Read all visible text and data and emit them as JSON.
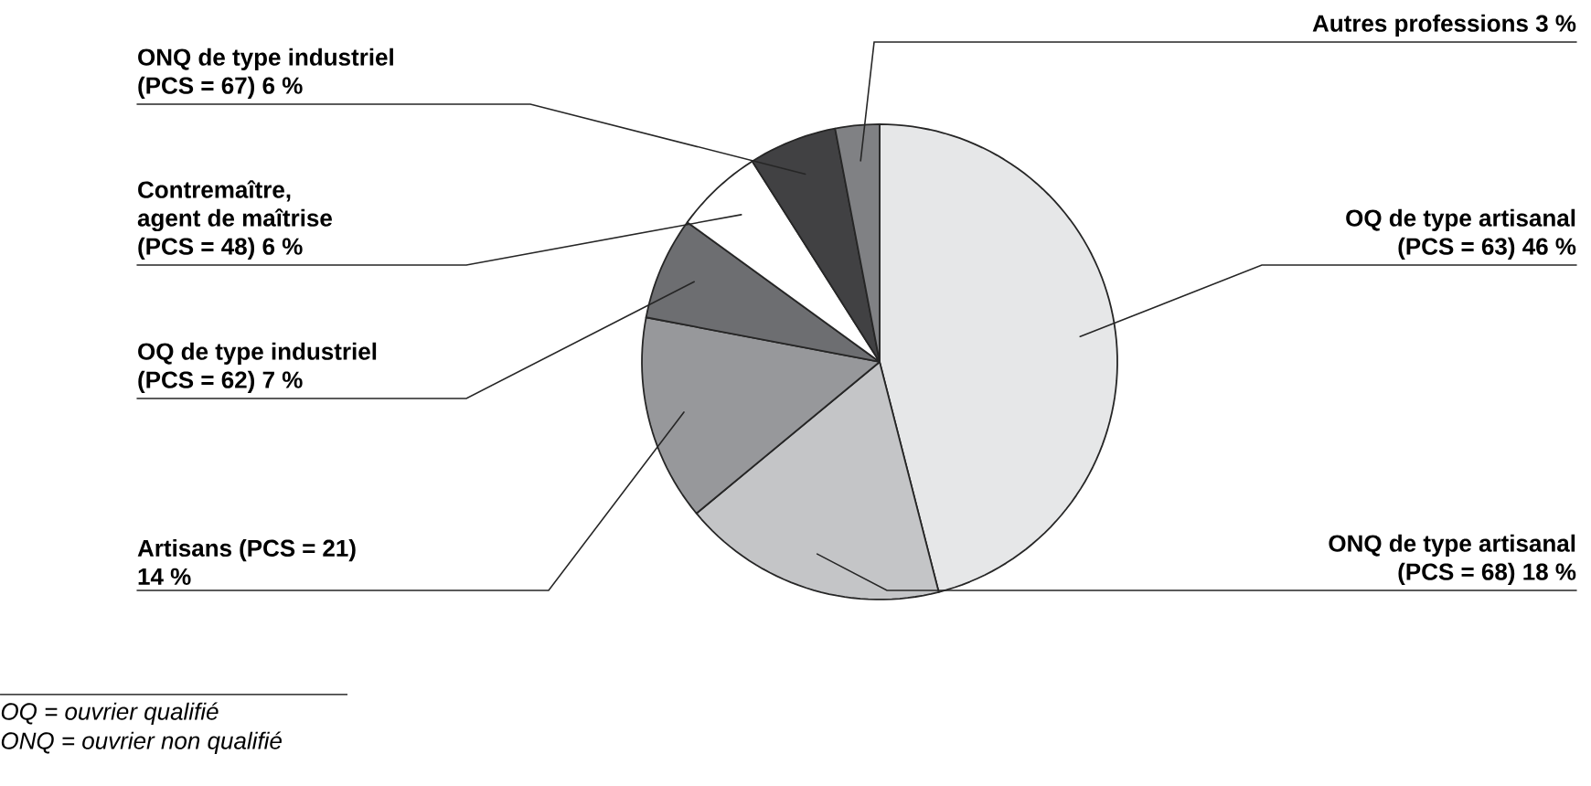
{
  "chart_data": {
    "type": "pie",
    "categories": [
      "OQ de type artisanal (PCS = 63)",
      "ONQ de type artisanal (PCS = 68)",
      "Artisans (PCS = 21)",
      "OQ de type industriel (PCS = 62)",
      "Contremaître, agent de maîtrise (PCS = 48)",
      "ONQ de type industriel (PCS = 67)",
      "Autres professions"
    ],
    "values": [
      46,
      18,
      14,
      7,
      6,
      6,
      3
    ],
    "value_labels": [
      "46 %",
      "18 %",
      "14 %",
      "7 %",
      "6 %",
      "6 %",
      "3 %"
    ],
    "colors": [
      "#e6e7e8",
      "#c4c5c7",
      "#97989b",
      "#6d6e71",
      "#ffffff",
      "#414143",
      "#808184"
    ],
    "annotations": [
      "OQ = ouvrier qualifié",
      "ONQ = ouvrier non qualifié"
    ]
  }
}
